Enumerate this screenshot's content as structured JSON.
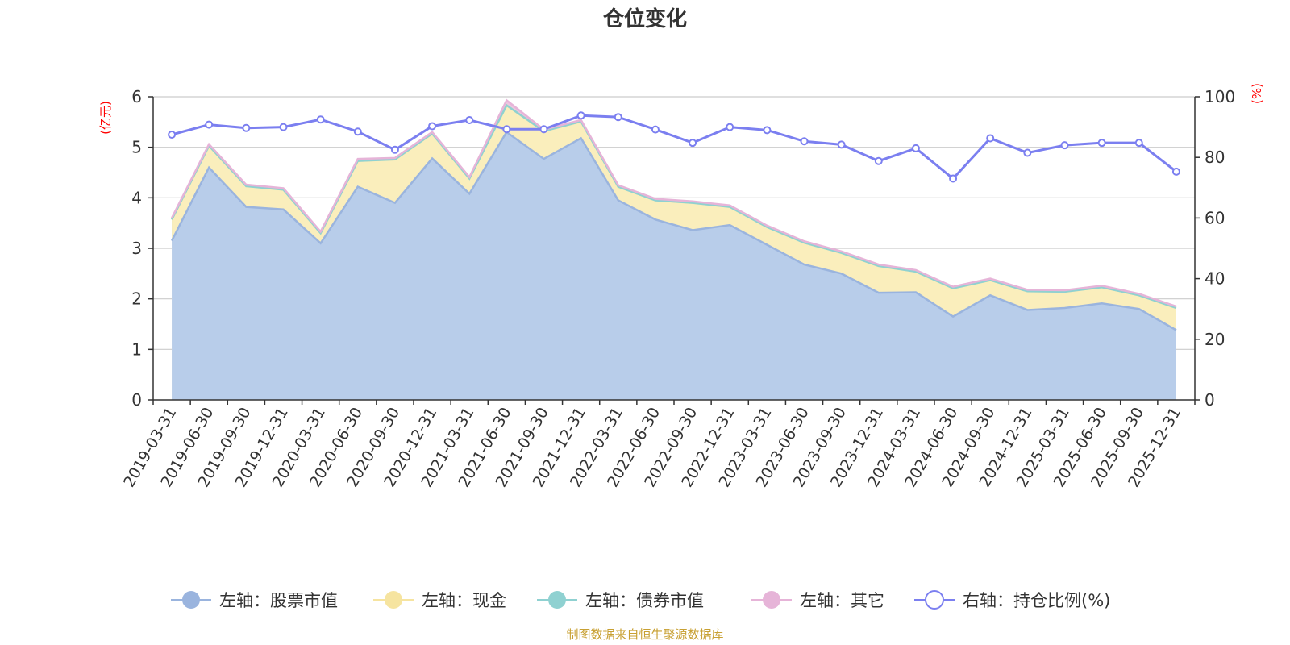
{
  "chart_data": {
    "type": "area",
    "title": "仓位变化",
    "left_unit": "(亿元)",
    "right_unit": "(%)",
    "left_ylim": [
      0,
      6
    ],
    "left_yticks": [
      0,
      1,
      2,
      3,
      4,
      5,
      6
    ],
    "right_ylim": [
      0,
      100
    ],
    "right_yticks": [
      0,
      20,
      40,
      60,
      80,
      100
    ],
    "categories": [
      "2019-03-31",
      "2019-06-30",
      "2019-09-30",
      "2019-12-31",
      "2020-03-31",
      "2020-06-30",
      "2020-09-30",
      "2020-12-31",
      "2021-03-31",
      "2021-06-30",
      "2021-09-30",
      "2021-12-31",
      "2022-03-31",
      "2022-06-30",
      "2022-09-30",
      "2022-12-31",
      "2023-03-31",
      "2023-06-30",
      "2023-09-30",
      "2023-12-31",
      "2024-03-31",
      "2024-06-30",
      "2024-09-30",
      "2024-12-31",
      "2025-03-31",
      "2025-06-30",
      "2025-09-30",
      "2025-12-31"
    ],
    "series": [
      {
        "name": "左轴：股票市值",
        "axis": "left",
        "stack": true,
        "color": "#9ab4de",
        "fill": "#b8cdea",
        "values": [
          3.15,
          4.6,
          3.82,
          3.77,
          3.1,
          4.22,
          3.9,
          4.78,
          4.08,
          5.3,
          4.77,
          5.18,
          3.95,
          3.57,
          3.36,
          3.46,
          3.07,
          2.68,
          2.5,
          2.12,
          2.13,
          1.65,
          2.07,
          1.78,
          1.82,
          1.91,
          1.8,
          1.38
        ]
      },
      {
        "name": "左轴：现金",
        "axis": "left",
        "stack": true,
        "color": "#f6e4a0",
        "fill": "#faeebc",
        "values": [
          0.42,
          0.43,
          0.41,
          0.39,
          0.2,
          0.51,
          0.86,
          0.49,
          0.3,
          0.53,
          0.55,
          0.33,
          0.27,
          0.38,
          0.54,
          0.36,
          0.35,
          0.43,
          0.41,
          0.53,
          0.41,
          0.56,
          0.3,
          0.37,
          0.32,
          0.32,
          0.27,
          0.44
        ]
      },
      {
        "name": "左轴：债券市值",
        "axis": "left",
        "stack": true,
        "color": "#8fd1d1",
        "fill": "#a8dcdc",
        "values": [
          0,
          0,
          0,
          0,
          0,
          0,
          0,
          0,
          0,
          0,
          0,
          0,
          0,
          0,
          0,
          0,
          0,
          0,
          0,
          0,
          0,
          0,
          0,
          0,
          0,
          0,
          0,
          0
        ]
      },
      {
        "name": "左轴：其它",
        "axis": "left",
        "stack": true,
        "color": "#e6b4d8",
        "fill": "#ecc6e0",
        "values": [
          0.03,
          0.03,
          0.03,
          0.03,
          0.03,
          0.04,
          0.03,
          0.03,
          0.03,
          0.1,
          0.03,
          0.03,
          0.03,
          0.03,
          0.03,
          0.03,
          0.03,
          0.03,
          0.03,
          0.03,
          0.03,
          0.03,
          0.03,
          0.03,
          0.03,
          0.03,
          0.03,
          0.03
        ]
      },
      {
        "name": "右轴：持仓比例(%)",
        "axis": "right",
        "type": "line",
        "color": "#7b7ff0",
        "values": [
          87.5,
          90.8,
          89.7,
          90,
          92.5,
          88.5,
          82.5,
          90.3,
          92.3,
          89.3,
          89.3,
          93.8,
          93.3,
          89.2,
          84.8,
          90,
          89,
          85.3,
          84.2,
          78.8,
          83,
          73,
          86.3,
          81.5,
          84,
          84.8,
          84.8,
          75.3
        ]
      }
    ],
    "legend": [
      "左轴：股票市值",
      "左轴：现金",
      "左轴：债券市值",
      "左轴：其它",
      "右轴：持仓比例(%)"
    ],
    "legend_position": "bottom",
    "grid": true
  },
  "footer": {
    "source": "制图数据来自恒生聚源数据库"
  }
}
